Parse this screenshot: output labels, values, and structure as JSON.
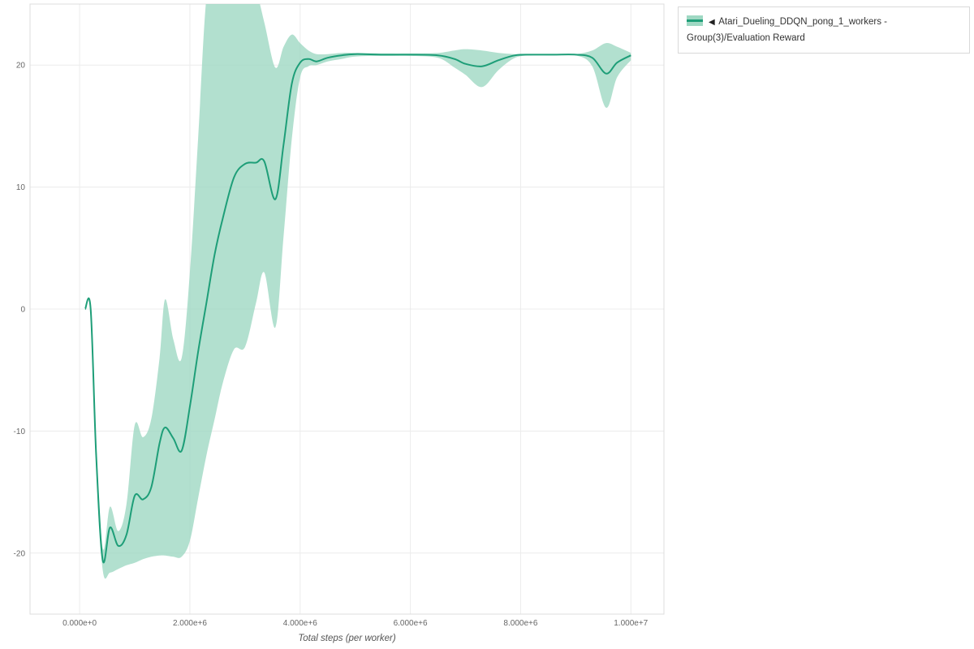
{
  "chart_data": {
    "type": "line",
    "title": "",
    "xlabel": "Total steps (per worker)",
    "ylabel": "",
    "xlim": [
      -900000,
      10600000
    ],
    "ylim": [
      -25,
      25
    ],
    "grid": true,
    "legend_position": "top-right-outside",
    "x_ticks": [
      {
        "value": 0,
        "label": "0.000e+0"
      },
      {
        "value": 2000000,
        "label": "2.000e+6"
      },
      {
        "value": 4000000,
        "label": "4.000e+6"
      },
      {
        "value": 6000000,
        "label": "6.000e+6"
      },
      {
        "value": 8000000,
        "label": "8.000e+6"
      },
      {
        "value": 10000000,
        "label": "1.000e+7"
      }
    ],
    "y_ticks": [
      {
        "value": -20,
        "label": "-20"
      },
      {
        "value": -10,
        "label": "-10"
      },
      {
        "value": 0,
        "label": "0"
      },
      {
        "value": 10,
        "label": "10"
      },
      {
        "value": 20,
        "label": "20"
      }
    ],
    "series": [
      {
        "name": "Atari_Dueling_DDQN_pong_1_workers - Group(3)/Evaluation Reward",
        "line_color": "#1e9e78",
        "band_color": "#9fd8c3",
        "band_opacity": 0.8,
        "x": [
          100000,
          200000,
          300000,
          420000,
          550000,
          700000,
          850000,
          1000000,
          1150000,
          1300000,
          1450000,
          1550000,
          1700000,
          1850000,
          2000000,
          2150000,
          2300000,
          2450000,
          2600000,
          2800000,
          3000000,
          3200000,
          3350000,
          3550000,
          3700000,
          3850000,
          4000000,
          4150000,
          4300000,
          4500000,
          4750000,
          5000000,
          5500000,
          6000000,
          6500000,
          6800000,
          7000000,
          7300000,
          7600000,
          7900000,
          8200000,
          8600000,
          9000000,
          9300000,
          9550000,
          9750000,
          10000000
        ],
        "mean": [
          0,
          0,
          -12,
          -20.6,
          -17.9,
          -19.4,
          -18.5,
          -15.3,
          -15.6,
          -14.6,
          -11.0,
          -9.7,
          -10.6,
          -11.6,
          -8.0,
          -3.5,
          0.5,
          4.5,
          7.5,
          10.8,
          11.9,
          12.0,
          12.1,
          9.0,
          13.5,
          18.5,
          20.2,
          20.5,
          20.3,
          20.6,
          20.8,
          20.9,
          20.85,
          20.85,
          20.8,
          20.5,
          20.1,
          19.9,
          20.4,
          20.8,
          20.85,
          20.85,
          20.85,
          20.6,
          19.3,
          20.2,
          20.8
        ],
        "upper": [
          0,
          0,
          -11,
          -19.6,
          -16.2,
          -18.2,
          -16.0,
          -9.5,
          -10.5,
          -9.0,
          -4.0,
          0.8,
          -2.5,
          -4.0,
          3.0,
          14.0,
          25.5,
          27,
          28,
          28,
          27,
          26,
          23.5,
          19.8,
          21.5,
          22.5,
          21.8,
          21.2,
          20.9,
          20.9,
          21.0,
          21.0,
          20.95,
          20.95,
          21.0,
          21.2,
          21.3,
          21.2,
          21.0,
          20.9,
          20.9,
          20.9,
          20.9,
          21.2,
          21.8,
          21.5,
          21.0
        ],
        "lower": [
          0,
          0,
          -13,
          -21.4,
          -21.6,
          -21.3,
          -21.0,
          -20.8,
          -20.5,
          -20.3,
          -20.2,
          -20.2,
          -20.3,
          -20.3,
          -19.0,
          -15.5,
          -12.0,
          -9.0,
          -6.0,
          -3.3,
          -3.1,
          0.5,
          3.0,
          -1.5,
          6.0,
          14.0,
          19.0,
          19.9,
          20.0,
          20.3,
          20.5,
          20.7,
          20.75,
          20.75,
          20.6,
          19.8,
          19.2,
          18.2,
          19.6,
          20.6,
          20.8,
          20.8,
          20.8,
          19.9,
          16.5,
          19.0,
          20.4
        ]
      }
    ]
  },
  "legend": {
    "collapse_icon": "◀",
    "items": [
      {
        "label": "Atari_Dueling_DDQN_pong_1_workers - Group(3)/Evaluation Reward"
      }
    ]
  },
  "colors": {
    "grid": "#ececec",
    "plot_border": "#dddddd",
    "tick_text": "#666666",
    "axis_title_text": "#555555"
  }
}
